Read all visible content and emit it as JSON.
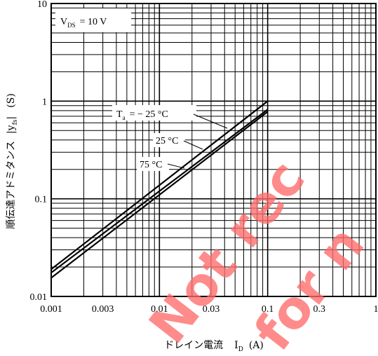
{
  "chart_data": {
    "type": "line",
    "x_scale": "log",
    "y_scale": "log",
    "xlim": [
      0.001,
      1
    ],
    "ylim": [
      0.01,
      10
    ],
    "grid": true,
    "xlabel": "ドレイン電流",
    "xlabel_symbol": "I",
    "xlabel_sub": "D",
    "xlabel_unit": "(A)",
    "ylabel": "順伝達アドミタンス",
    "ylabel_symbol": "|y",
    "ylabel_sub": "fs",
    "ylabel_close": "|",
    "ylabel_unit": "(S)",
    "x_ticks": [
      "0.001",
      "0.003",
      "0.01",
      "0.03",
      "0.1",
      "0.3",
      "1"
    ],
    "y_ticks": [
      "10",
      "1",
      "0.1",
      "0.01"
    ],
    "condition": {
      "symbol": "V",
      "sub": "DS",
      "rest": "= 10 V"
    },
    "series": [
      {
        "name": "Ta = − 25 °C",
        "x": [
          0.001,
          0.1
        ],
        "y": [
          0.019,
          1.0
        ]
      },
      {
        "name": "25 °C",
        "x": [
          0.001,
          0.1
        ],
        "y": [
          0.0175,
          0.82
        ]
      },
      {
        "name": "75 °C",
        "x": [
          0.001,
          0.1
        ],
        "y": [
          0.0155,
          0.78
        ]
      }
    ],
    "annotations": {
      "ta_prefix": "T",
      "ta_sub": "a",
      "ta_rest": "= − 25 °C",
      "s2": "25 °C",
      "s3": "75 °C"
    },
    "watermark": [
      "Not rec",
      "for n"
    ]
  }
}
